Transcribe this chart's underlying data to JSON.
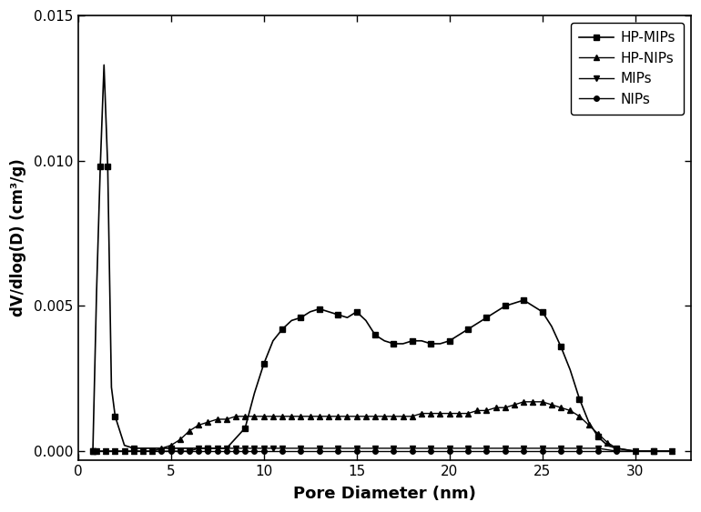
{
  "title": "",
  "xlabel": "Pore Diameter (nm)",
  "ylabel": "dV/dlog(D) (cm³/g)",
  "xlim": [
    0,
    33
  ],
  "ylim": [
    -0.0003,
    0.015
  ],
  "yticks": [
    0.0,
    0.005,
    0.01,
    0.015
  ],
  "xticks": [
    0,
    5,
    10,
    15,
    20,
    25,
    30
  ],
  "background_color": "#ffffff",
  "series": [
    {
      "label": "HP-MIPs",
      "marker": "s",
      "color": "#000000",
      "markersize": 5,
      "markevery": 2,
      "linewidth": 1.2,
      "x": [
        0.8,
        1.0,
        1.2,
        1.4,
        1.6,
        1.8,
        2.0,
        2.5,
        3.0,
        4.0,
        5.0,
        6.0,
        7.0,
        8.0,
        9.0,
        9.5,
        10.0,
        10.5,
        11.0,
        11.5,
        12.0,
        12.5,
        13.0,
        13.5,
        14.0,
        14.5,
        15.0,
        15.5,
        16.0,
        16.5,
        17.0,
        17.5,
        18.0,
        18.5,
        19.0,
        19.5,
        20.0,
        20.5,
        21.0,
        21.5,
        22.0,
        22.5,
        23.0,
        23.5,
        24.0,
        24.5,
        25.0,
        25.5,
        26.0,
        26.5,
        27.0,
        27.5,
        28.0,
        28.5,
        29.0,
        30.0,
        31.0,
        32.0
      ],
      "y": [
        0.0,
        0.0055,
        0.0098,
        0.0133,
        0.0098,
        0.0022,
        0.0012,
        0.0002,
        0.0001,
        0.0001,
        0.0001,
        0.0001,
        0.0001,
        0.0001,
        0.0008,
        0.002,
        0.003,
        0.0038,
        0.0042,
        0.0045,
        0.0046,
        0.0048,
        0.0049,
        0.0048,
        0.0047,
        0.0046,
        0.0048,
        0.0045,
        0.004,
        0.0038,
        0.0037,
        0.0037,
        0.0038,
        0.0038,
        0.0037,
        0.0037,
        0.0038,
        0.004,
        0.0042,
        0.0044,
        0.0046,
        0.0048,
        0.005,
        0.0051,
        0.0052,
        0.005,
        0.0048,
        0.0043,
        0.0036,
        0.0028,
        0.0018,
        0.001,
        0.0005,
        0.0002,
        0.0001,
        0.0,
        0.0,
        0.0
      ]
    },
    {
      "label": "HP-NIPs",
      "marker": "^",
      "color": "#000000",
      "markersize": 4,
      "markevery": 1,
      "linewidth": 1.0,
      "x": [
        0.8,
        1.0,
        1.5,
        2.0,
        2.5,
        3.0,
        3.5,
        4.0,
        4.5,
        5.0,
        5.5,
        6.0,
        6.5,
        7.0,
        7.5,
        8.0,
        8.5,
        9.0,
        9.5,
        10.0,
        10.5,
        11.0,
        11.5,
        12.0,
        12.5,
        13.0,
        13.5,
        14.0,
        14.5,
        15.0,
        15.5,
        16.0,
        16.5,
        17.0,
        17.5,
        18.0,
        18.5,
        19.0,
        19.5,
        20.0,
        20.5,
        21.0,
        21.5,
        22.0,
        22.5,
        23.0,
        23.5,
        24.0,
        24.5,
        25.0,
        25.5,
        26.0,
        26.5,
        27.0,
        27.5,
        28.0,
        28.5,
        29.0,
        30.0,
        31.0,
        32.0
      ],
      "y": [
        0.0,
        0.0,
        0.0,
        0.0,
        0.0,
        0.0,
        0.0,
        0.0,
        0.0001,
        0.0002,
        0.0004,
        0.0007,
        0.0009,
        0.001,
        0.0011,
        0.0011,
        0.0012,
        0.0012,
        0.0012,
        0.0012,
        0.0012,
        0.0012,
        0.0012,
        0.0012,
        0.0012,
        0.0012,
        0.0012,
        0.0012,
        0.0012,
        0.0012,
        0.0012,
        0.0012,
        0.0012,
        0.0012,
        0.0012,
        0.0012,
        0.0013,
        0.0013,
        0.0013,
        0.0013,
        0.0013,
        0.0013,
        0.0014,
        0.0014,
        0.0015,
        0.0015,
        0.0016,
        0.0017,
        0.0017,
        0.0017,
        0.0016,
        0.0015,
        0.0014,
        0.0012,
        0.0009,
        0.0006,
        0.0003,
        0.0001,
        0.0,
        0.0,
        0.0
      ]
    },
    {
      "label": "MIPs",
      "marker": "v",
      "color": "#000000",
      "markersize": 4,
      "markevery": 1,
      "linewidth": 1.0,
      "x": [
        0.8,
        1.0,
        1.5,
        2.0,
        2.5,
        3.0,
        3.5,
        4.0,
        4.5,
        5.0,
        5.5,
        6.0,
        6.5,
        7.0,
        7.5,
        8.0,
        8.5,
        9.0,
        9.5,
        10.0,
        10.5,
        11.0,
        12.0,
        13.0,
        14.0,
        15.0,
        16.0,
        17.0,
        18.0,
        19.0,
        20.0,
        21.0,
        22.0,
        23.0,
        24.0,
        25.0,
        26.0,
        27.0,
        28.0,
        29.0,
        30.0,
        31.0,
        32.0
      ],
      "y": [
        0.0,
        0.0,
        0.0,
        0.0,
        0.0,
        0.0,
        0.0,
        0.0,
        0.0,
        0.0,
        0.0,
        0.0,
        0.0001,
        0.0001,
        0.0001,
        0.0001,
        0.0001,
        0.0001,
        0.0001,
        0.0001,
        0.0001,
        0.0001,
        0.0001,
        0.0001,
        0.0001,
        0.0001,
        0.0001,
        0.0001,
        0.0001,
        0.0001,
        0.0001,
        0.0001,
        0.0001,
        0.0001,
        0.0001,
        0.0001,
        0.0001,
        0.0001,
        0.0001,
        0.0,
        0.0,
        0.0,
        0.0
      ]
    },
    {
      "label": "NIPs",
      "marker": "o",
      "color": "#000000",
      "markersize": 4,
      "markevery": 1,
      "linewidth": 1.0,
      "x": [
        0.8,
        1.0,
        1.5,
        2.0,
        2.5,
        3.0,
        3.5,
        4.0,
        4.5,
        5.0,
        5.5,
        6.0,
        6.5,
        7.0,
        7.5,
        8.0,
        8.5,
        9.0,
        9.5,
        10.0,
        11.0,
        12.0,
        13.0,
        14.0,
        15.0,
        16.0,
        17.0,
        18.0,
        19.0,
        20.0,
        21.0,
        22.0,
        23.0,
        24.0,
        25.0,
        26.0,
        27.0,
        28.0,
        29.0,
        30.0,
        31.0,
        32.0
      ],
      "y": [
        0.0,
        0.0,
        0.0,
        0.0,
        0.0,
        0.0,
        0.0,
        0.0,
        0.0,
        0.0,
        0.0,
        0.0,
        0.0,
        0.0,
        0.0,
        0.0,
        0.0,
        0.0,
        0.0,
        0.0,
        0.0,
        0.0,
        0.0,
        0.0,
        0.0,
        0.0,
        0.0,
        0.0,
        0.0,
        0.0,
        0.0,
        0.0,
        0.0,
        0.0,
        0.0,
        0.0,
        0.0,
        0.0,
        0.0,
        0.0,
        0.0,
        0.0
      ]
    }
  ]
}
